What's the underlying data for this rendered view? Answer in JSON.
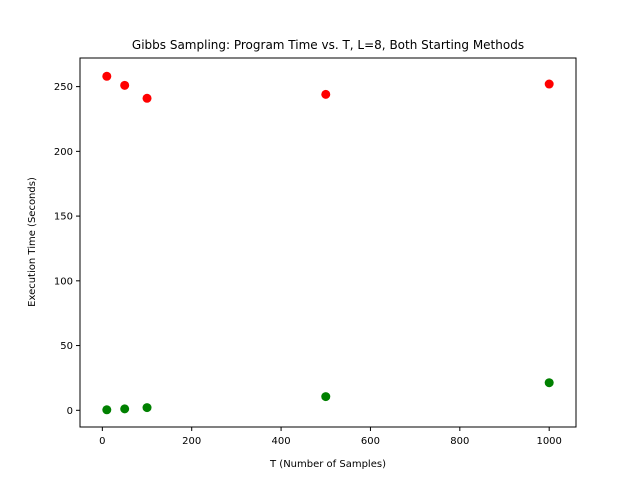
{
  "chart_data": {
    "type": "scatter",
    "title": "Gibbs Sampling: Program Time vs. T, L=8, Both Starting Methods",
    "xlabel": "T (Number of Samples)",
    "ylabel": "Execution Time (Seconds)",
    "xlim": [
      -50,
      1060
    ],
    "ylim": [
      -12.9,
      272.1
    ],
    "x_ticks": [
      0,
      200,
      400,
      600,
      800,
      1000
    ],
    "y_ticks": [
      0,
      50,
      100,
      150,
      200,
      250
    ],
    "grid": false,
    "legend": "none",
    "series": [
      {
        "color": "#ff0000",
        "points": [
          {
            "x": 10,
            "y": 258
          },
          {
            "x": 50,
            "y": 251
          },
          {
            "x": 100,
            "y": 241
          },
          {
            "x": 500,
            "y": 244
          },
          {
            "x": 1000,
            "y": 252
          }
        ]
      },
      {
        "color": "#008000",
        "points": [
          {
            "x": 10,
            "y": 0.4
          },
          {
            "x": 50,
            "y": 1.1
          },
          {
            "x": 100,
            "y": 2.1
          },
          {
            "x": 500,
            "y": 10.6
          },
          {
            "x": 1000,
            "y": 21.3
          }
        ]
      }
    ]
  }
}
